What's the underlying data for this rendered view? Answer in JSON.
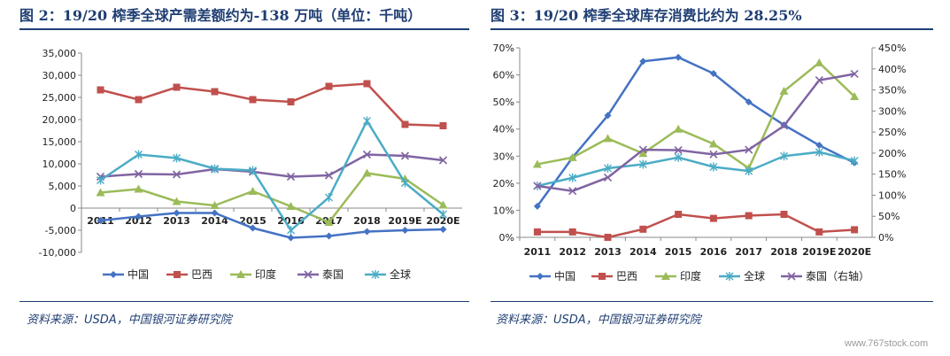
{
  "left": {
    "title": "图 2：19/20 榨季全球产需差额约为-138 万吨（单位：千吨）",
    "source": "资料来源：USDA，中国银河证券研究院",
    "chart_data": {
      "type": "line",
      "x": [
        "2011",
        "2012",
        "2013",
        "2014",
        "2015",
        "2016",
        "2017",
        "2018",
        "2019E",
        "2020E"
      ],
      "ylim": [
        -10000,
        35000
      ],
      "yticks": [
        "-10,000",
        "-5,000",
        "0",
        "5,000",
        "10,000",
        "15,000",
        "20,000",
        "25,000",
        "30,000",
        "35,000"
      ],
      "grid": false,
      "legend_position": "bottom",
      "series": [
        {
          "name": "中国",
          "color": "#4472c4",
          "marker": "diamond",
          "values": [
            -2800,
            -1900,
            -1100,
            -1100,
            -4500,
            -6700,
            -6300,
            -5300,
            -5000,
            -4800
          ]
        },
        {
          "name": "巴西",
          "color": "#c0504d",
          "marker": "square",
          "values": [
            26700,
            24500,
            27300,
            26300,
            24500,
            24000,
            27500,
            28100,
            18900,
            18600
          ]
        },
        {
          "name": "印度",
          "color": "#9bbb59",
          "marker": "triangle",
          "values": [
            3500,
            4300,
            1500,
            600,
            3800,
            400,
            -3200,
            7900,
            6600,
            700
          ]
        },
        {
          "name": "泰国",
          "color": "#8064a2",
          "marker": "x",
          "values": [
            7100,
            7700,
            7600,
            8800,
            8200,
            7100,
            7400,
            12100,
            11800,
            10800
          ]
        },
        {
          "name": "全球",
          "color": "#4bacc6",
          "marker": "star",
          "values": [
            6300,
            12100,
            11300,
            8900,
            8500,
            -5000,
            2400,
            19700,
            5700,
            -1400
          ]
        }
      ]
    }
  },
  "right": {
    "title": "图 3：19/20 榨季全球库存消费比约为 28.25%",
    "source": "资料来源：USDA，中国银河证券研究院",
    "chart_data": {
      "type": "line",
      "x": [
        "2011",
        "2012",
        "2013",
        "2014",
        "2015",
        "2016",
        "2017",
        "2018",
        "2019E",
        "2020E"
      ],
      "ylim": [
        0,
        70
      ],
      "yticks": [
        "0%",
        "10%",
        "20%",
        "30%",
        "40%",
        "50%",
        "60%",
        "70%"
      ],
      "y2lim": [
        0,
        450
      ],
      "y2ticks": [
        "0%",
        "50%",
        "100%",
        "150%",
        "200%",
        "250%",
        "300%",
        "350%",
        "400%",
        "450%"
      ],
      "grid": false,
      "legend_position": "bottom",
      "series": [
        {
          "name": "中国",
          "color": "#4472c4",
          "marker": "diamond",
          "axis": "left",
          "values": [
            11.5,
            29.5,
            45,
            65,
            66.5,
            60.5,
            50,
            41.5,
            34,
            27.5
          ]
        },
        {
          "name": "巴西",
          "color": "#c0504d",
          "marker": "square",
          "axis": "left",
          "values": [
            2,
            2,
            0,
            3,
            8.5,
            7,
            8,
            8.5,
            2,
            2.8
          ]
        },
        {
          "name": "印度",
          "color": "#9bbb59",
          "marker": "triangle",
          "axis": "left",
          "values": [
            27,
            29.5,
            36.5,
            31,
            40,
            34.5,
            25.5,
            54,
            64.5,
            52
          ]
        },
        {
          "name": "全球",
          "color": "#4bacc6",
          "marker": "star",
          "axis": "left",
          "values": [
            19,
            22,
            25.5,
            27,
            29.5,
            26,
            24.5,
            30,
            31.5,
            28.25
          ]
        },
        {
          "name": "泰国（右轴）",
          "color": "#8064a2",
          "marker": "x",
          "axis": "right",
          "values": [
            122,
            110,
            142,
            208,
            207,
            197,
            208,
            265,
            373,
            388
          ]
        }
      ]
    }
  }
}
